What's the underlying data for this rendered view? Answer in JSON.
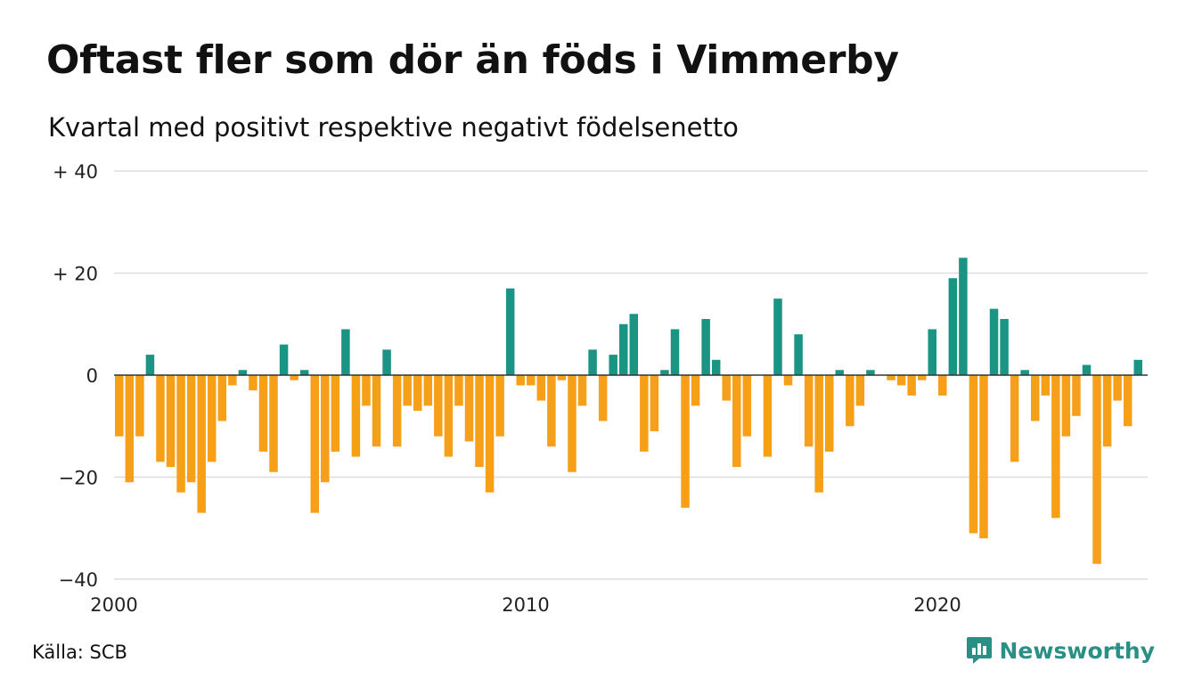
{
  "title": "Oftast fler som dör än föds i Vimmerby",
  "subtitle": "Kvartal med positivt respektive negativt födelsenetto",
  "source": "Källa: SCB",
  "brand": {
    "name": "Newsworthy",
    "icon": "newsworthy-logo-icon"
  },
  "colors": {
    "positive": "#1a9483",
    "negative": "#f6a01a",
    "grid": "#dddddd",
    "axis": "#333333",
    "brand": "#2a8f85"
  },
  "chart_data": {
    "type": "bar",
    "x_start": 2000,
    "x_step": "quarter",
    "ylim": [
      -40,
      40
    ],
    "y_ticks": [
      {
        "value": 40,
        "label": "+ 40"
      },
      {
        "value": 20,
        "label": "+ 20"
      },
      {
        "value": 0,
        "label": "0"
      },
      {
        "value": -20,
        "label": "−20"
      },
      {
        "value": -40,
        "label": "−40"
      }
    ],
    "x_ticks": [
      {
        "year": 2000,
        "label": "2000"
      },
      {
        "year": 2010,
        "label": "2010"
      },
      {
        "year": 2020,
        "label": "2020"
      }
    ],
    "grid": true,
    "legend": "none",
    "values": [
      -12,
      -21,
      -12,
      4,
      -17,
      -18,
      -23,
      -21,
      -27,
      -17,
      -9,
      -2,
      1,
      -3,
      -15,
      -19,
      6,
      -1,
      1,
      -27,
      -21,
      -15,
      9,
      -16,
      -6,
      -14,
      5,
      -14,
      -6,
      -7,
      -6,
      -12,
      -16,
      -6,
      -13,
      -18,
      -23,
      -12,
      17,
      -2,
      -2,
      -5,
      -14,
      -1,
      -19,
      -6,
      5,
      -9,
      4,
      10,
      12,
      -15,
      -11,
      1,
      9,
      -26,
      -6,
      11,
      3,
      -5,
      -18,
      -12,
      0,
      -16,
      15,
      -2,
      8,
      -14,
      -23,
      -15,
      1,
      -10,
      -6,
      1,
      0,
      -1,
      -2,
      -4,
      -1,
      9,
      -4,
      19,
      23,
      -31,
      -32,
      13,
      11,
      -17,
      1,
      -9,
      -4,
      -28,
      -12,
      -8,
      2,
      -37,
      -14,
      -5,
      -10,
      3
    ]
  }
}
